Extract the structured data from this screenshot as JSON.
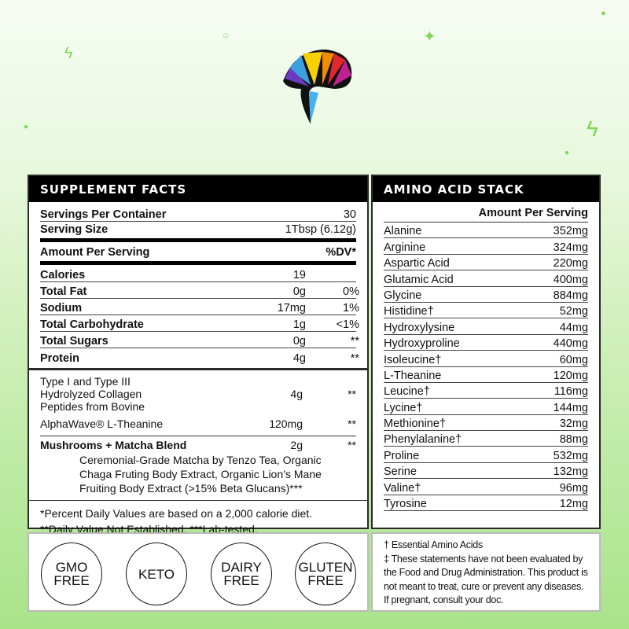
{
  "supplement_facts": {
    "title": "SUPPLEMENT FACTS",
    "servings_per_container": {
      "label": "Servings Per Container",
      "value": "30"
    },
    "serving_size": {
      "label": "Serving Size",
      "value": "1Tbsp (6.12g)"
    },
    "amount_header": {
      "label": "Amount Per Serving",
      "dv": "%DV*"
    },
    "nutrients": [
      {
        "name": "Calories",
        "amount": "19",
        "dv": ""
      },
      {
        "name": "Total Fat",
        "amount": "0g",
        "dv": "0%"
      },
      {
        "name": "Sodium",
        "amount": "17mg",
        "dv": "1%"
      },
      {
        "name": "Total Carbohydrate",
        "amount": "1g",
        "dv": "<1%"
      },
      {
        "name": "Total Sugars",
        "amount": "0g",
        "dv": "**"
      },
      {
        "name": "Protein",
        "amount": "4g",
        "dv": "**"
      }
    ],
    "ingredients": [
      {
        "name": "Type I and Type III Hydrolyzed Collagen Peptides from Bovine",
        "amount": "4g",
        "dv": "**"
      },
      {
        "name": "AlphaWave® L-Theanine",
        "amount": "120mg",
        "dv": "**"
      },
      {
        "name": "Mushrooms + Matcha Blend",
        "amount": "2g",
        "dv": "**",
        "detail": "Ceremonial-Grade Matcha by Tenzo Tea, Organic Chaga Fruting Body Extract, Organic Lion’s Mane Fruiting Body Extract (>15% Beta Glucans)***"
      }
    ],
    "footnote1": "*Percent Daily Values are based on a 2,000 calorie diet.",
    "footnote2": "**Daily Value Not Established. ***Lab-tested."
  },
  "amino": {
    "title": "AMINO ACID STACK",
    "header": "Amount Per Serving",
    "rows": [
      [
        "Alanine",
        "352mg"
      ],
      [
        "Arginine",
        "324mg"
      ],
      [
        "Aspartic Acid",
        "220mg"
      ],
      [
        "Glutamic Acid",
        "400mg"
      ],
      [
        "Glycine",
        "884mg"
      ],
      [
        "Histidine†",
        "52mg"
      ],
      [
        "Hydroxylysine",
        "44mg"
      ],
      [
        "Hydroxyproline",
        "440mg"
      ],
      [
        "Isoleucine†",
        "60mg"
      ],
      [
        "L-Theanine",
        "120mg"
      ],
      [
        "Leucine†",
        "116mg"
      ],
      [
        "Lycine†",
        "144mg"
      ],
      [
        "Methionine†",
        "32mg"
      ],
      [
        "Phenylalanine†",
        "88mg"
      ],
      [
        "Proline",
        "532mg"
      ],
      [
        "Serine",
        "132mg"
      ],
      [
        "Valine†",
        "96mg"
      ],
      [
        "Tyrosine",
        "12mg"
      ]
    ]
  },
  "badges": [
    [
      "GMO",
      "FREE"
    ],
    [
      "KETO",
      ""
    ],
    [
      "DAIRY",
      "FREE"
    ],
    [
      "GLUTEN",
      "FREE"
    ]
  ],
  "disclaimer": {
    "essential": "† Essential Amino Acids",
    "statement": "‡ These statements have not been evaluated by the Food and Drug Administration. This product is not meant to treat, cure or prevent any diseases. If pregnant, consult your doc."
  },
  "colors": {
    "background_top": "#f7fcf4",
    "background_bottom": "#a9e38a",
    "accent": "#7fd657"
  }
}
